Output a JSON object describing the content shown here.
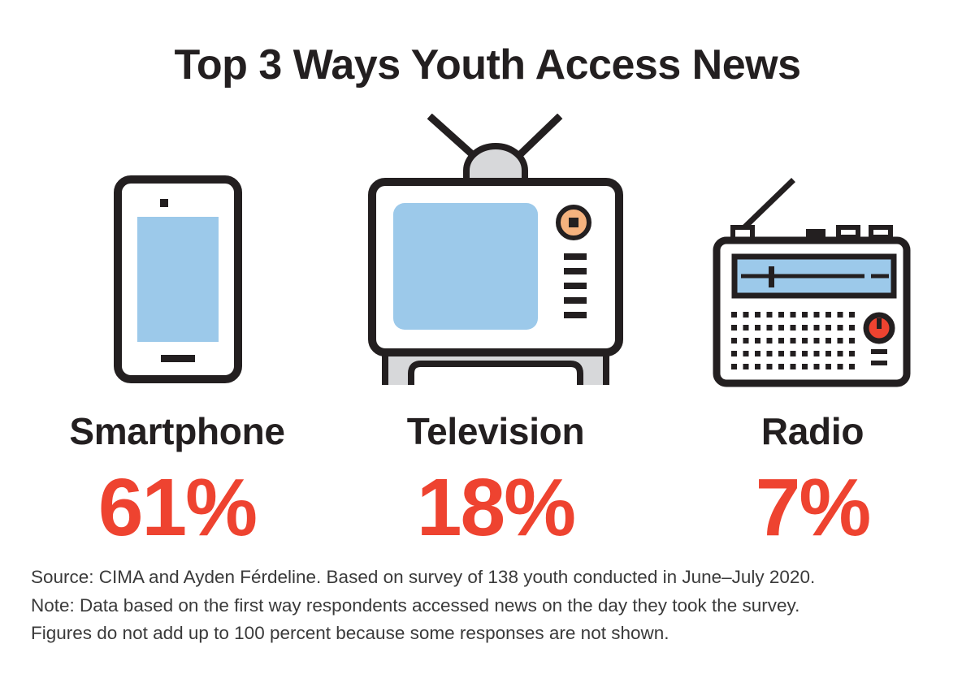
{
  "title": "Top 3 Ways Youth Access News",
  "colors": {
    "accent": "#ee4330",
    "outline": "#231f20",
    "screen": "#9cc9ea",
    "knob_tv": "#f5b27e",
    "knob_radio": "#ee4330",
    "light_gray": "#d7d8da"
  },
  "chart_data": {
    "type": "table",
    "categories": [
      "Smartphone",
      "Television",
      "Radio"
    ],
    "values": [
      61,
      18,
      7
    ],
    "value_labels": [
      "61%",
      "18%",
      "7%"
    ],
    "icons": [
      "smartphone-icon",
      "television-icon",
      "radio-icon"
    ],
    "title": "Top 3 Ways Youth Access News"
  },
  "notes": [
    "Source: CIMA and Ayden Férdeline. Based on survey of 138 youth conducted in June–July 2020.",
    "Note: Data based on the first way respondents accessed news on the day they took the survey.",
    "Figures do not add up to 100 percent because some responses are not shown."
  ]
}
